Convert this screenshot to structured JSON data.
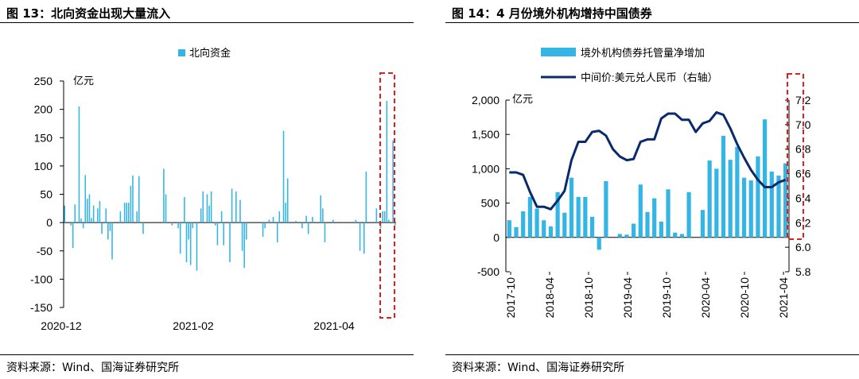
{
  "left": {
    "title": "图 13：北向资金出现大量流入",
    "source": "资料来源：Wind、国海证券研究所",
    "chart_data": {
      "type": "bar",
      "legend": [
        "北向资金"
      ],
      "legend_position": "top-center",
      "ylabel": "亿元",
      "ylim": [
        -150,
        250
      ],
      "yticks": [
        -150,
        -100,
        -50,
        0,
        50,
        100,
        150,
        200,
        250
      ],
      "xticks": [
        "2020-12",
        "2021-02",
        "2021-04"
      ],
      "series": [
        {
          "name": "北向资金",
          "color": "#33b5e5",
          "values": [
            30,
            0,
            0,
            -5,
            -45,
            32,
            0,
            205,
            7,
            -10,
            84,
            42,
            50,
            8,
            30,
            0,
            25,
            38,
            -20,
            0,
            25,
            -30,
            -15,
            -65,
            0,
            0,
            0,
            20,
            0,
            35,
            35,
            35,
            65,
            83,
            0,
            20,
            82,
            0,
            -20,
            0,
            0,
            0,
            0,
            0,
            0,
            0,
            0,
            0,
            95,
            50,
            0,
            0,
            -5,
            0,
            0,
            -10,
            -55,
            0,
            45,
            -70,
            -30,
            -75,
            -10,
            0,
            -85,
            0,
            25,
            55,
            0,
            50,
            30,
            55,
            0,
            -5,
            -40,
            0,
            20,
            -40,
            0,
            0,
            -70,
            60,
            0,
            55,
            0,
            40,
            -50,
            -80,
            -30,
            0,
            0,
            0,
            0,
            0,
            0,
            0,
            -25,
            -10,
            0,
            5,
            0,
            10,
            0,
            -35,
            20,
            0,
            162,
            35,
            78,
            0,
            0,
            0,
            3,
            0,
            0,
            -10,
            0,
            12,
            -20,
            0,
            10,
            0,
            0,
            0,
            48,
            25,
            -35,
            0,
            0,
            0,
            5,
            0,
            0,
            0,
            0,
            0,
            0,
            0,
            0,
            0,
            0,
            5,
            0,
            -50,
            0,
            -55,
            90,
            0,
            0,
            0,
            0,
            25,
            0,
            -10,
            20,
            20,
            215,
            5,
            0,
            145,
            -5
          ]
        }
      ],
      "highlight": "last 5 bars enclosed by red dashed box"
    }
  },
  "right": {
    "title": "图 14：4 月份境外机构增持中国债券",
    "source": "资料来源：Wind、国海证券研究所",
    "chart_data": {
      "type": "bar+line",
      "ylabel": "亿元",
      "ylim": [
        -500,
        2000
      ],
      "yticks": [
        -500,
        0,
        500,
        1000,
        1500,
        2000
      ],
      "y2lim": [
        5.8,
        7.2
      ],
      "y2ticks": [
        5.8,
        6.0,
        6.2,
        6.4,
        6.6,
        6.8,
        7.0,
        7.2
      ],
      "xticks": [
        "2017-10",
        "2018-04",
        "2018-10",
        "2019-04",
        "2019-10",
        "2020-04",
        "2020-10",
        "2021-04"
      ],
      "legend_position": "top",
      "series": [
        {
          "name": "境外机构债券托管量净增加",
          "type": "bar",
          "color": "#33b5e5",
          "values": [
            250,
            150,
            380,
            590,
            420,
            250,
            160,
            660,
            360,
            870,
            590,
            590,
            300,
            -180,
            820,
            0,
            50,
            40,
            200,
            770,
            370,
            570,
            230,
            700,
            70,
            50,
            660,
            0,
            400,
            1120,
            1000,
            1480,
            1130,
            1320,
            870,
            830,
            1180,
            1720,
            960,
            900,
            1080
          ]
        },
        {
          "name": "中间价:美元兑人民币（右轴）",
          "type": "line",
          "color": "#0a2a6e",
          "values": [
            6.61,
            6.61,
            6.59,
            6.45,
            6.33,
            6.33,
            6.31,
            6.38,
            6.46,
            6.71,
            6.86,
            6.86,
            6.94,
            6.95,
            6.91,
            6.8,
            6.74,
            6.71,
            6.72,
            6.86,
            6.88,
            6.88,
            7.05,
            7.09,
            7.09,
            7.04,
            7.04,
            6.94,
            7.01,
            7.03,
            7.1,
            7.08,
            6.97,
            6.84,
            6.73,
            6.63,
            6.55,
            6.49,
            6.49,
            6.53,
            6.55
          ]
        }
      ],
      "highlight": "last bars enclosed by red dashed box"
    }
  }
}
